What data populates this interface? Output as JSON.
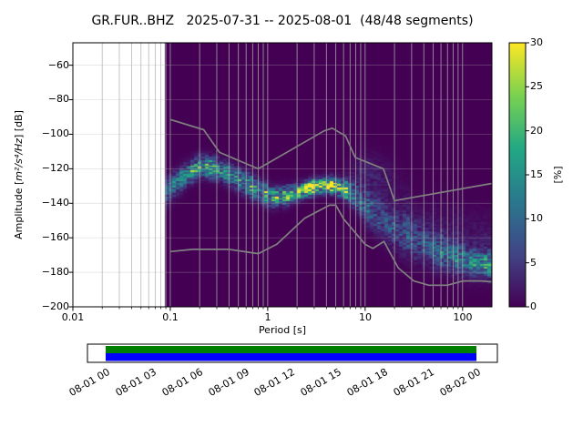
{
  "title": "GR.FUR..BHZ   2025-07-31 -- 2025-08-01  (48/48 segments)",
  "axes": {
    "xlabel": "Period [s]",
    "ylabel_prefix": "Amplitude [",
    "ylabel_math": "m²/s⁴/Hz",
    "ylabel_suffix": "] [dB]",
    "x_tick_labels": [
      "0.01",
      "0.1",
      "1",
      "10",
      "100"
    ],
    "y_tick_labels": [
      "−60",
      "−80",
      "−100",
      "−120",
      "−140",
      "−160",
      "−180",
      "−200"
    ]
  },
  "colorbar": {
    "label": "[%]",
    "tick_labels": [
      "0",
      "5",
      "10",
      "15",
      "20",
      "25",
      "30"
    ]
  },
  "timeline": {
    "tick_labels": [
      "08-01 00",
      "08-01 03",
      "08-01 06",
      "08-01 09",
      "08-01 12",
      "08-01 15",
      "08-01 18",
      "08-01 21",
      "08-02 00"
    ]
  },
  "colors": {
    "viridis_stops": [
      "#440154",
      "#414487",
      "#2a788e",
      "#22a884",
      "#7ad151",
      "#fde725"
    ],
    "histogram_background": "#440154",
    "noise_model": "#808080",
    "grid": "#b0b0b0",
    "timeline_used": "#008000",
    "timeline_coverage": "#0000ff"
  },
  "chart_data": {
    "type": "heatmap",
    "subtype": "ppsd-probability-density",
    "title": "GR.FUR..BHZ   2025-07-31 -- 2025-08-01  (48/48 segments)",
    "station": "GR.FUR..BHZ",
    "time_range": [
      "2025-07-31",
      "2025-08-01"
    ],
    "segments_used": 48,
    "segments_total": 48,
    "xlabel": "Period [s]",
    "ylabel": "Amplitude [m^2/s^4/Hz] [dB]",
    "xscale": "log",
    "xlim": [
      0.01,
      200
    ],
    "ylim": [
      -200,
      -47
    ],
    "grid": true,
    "colorbar_label": "[%]",
    "colorbar_range": [
      0,
      30
    ],
    "data_period_min_s": 0.088,
    "db_bin_width": 1,
    "period_bin_decades": 0.0376,
    "distribution_components_format": "[period_s, mode_db, sigma_db, peak_percent]",
    "distribution_components": {
      "main": [
        [
          0.088,
          -134,
          5.0,
          7
        ],
        [
          0.11,
          -129,
          4.5,
          10
        ],
        [
          0.15,
          -123,
          4.0,
          14
        ],
        [
          0.2,
          -118.5,
          3.8,
          16
        ],
        [
          0.28,
          -119.5,
          3.8,
          16
        ],
        [
          0.4,
          -123,
          4.0,
          14
        ],
        [
          0.6,
          -128.5,
          4.2,
          13
        ],
        [
          0.85,
          -133.5,
          4.0,
          14
        ],
        [
          1.1,
          -136.5,
          3.6,
          16
        ],
        [
          1.6,
          -135.5,
          3.2,
          19
        ],
        [
          2.3,
          -132.5,
          2.9,
          25
        ],
        [
          3.2,
          -130,
          2.7,
          30
        ],
        [
          4.5,
          -129.5,
          2.8,
          29
        ],
        [
          6.0,
          -131.5,
          3.2,
          22
        ],
        [
          8.0,
          -136,
          4.5,
          13
        ],
        [
          11,
          -143,
          6.5,
          8
        ],
        [
          16,
          -150,
          7.5,
          6.5
        ],
        [
          23,
          -156,
          8.0,
          6
        ],
        [
          34,
          -162,
          7.5,
          6.5
        ],
        [
          50,
          -167,
          6.5,
          8
        ],
        [
          75,
          -170.5,
          6.0,
          10
        ],
        [
          110,
          -173.5,
          5.5,
          12
        ],
        [
          160,
          -175.5,
          5.0,
          14
        ],
        [
          200,
          -176,
          5.0,
          14
        ]
      ],
      "mid_period_high_spread": [
        [
          6,
          -125,
          6,
          0.3
        ],
        [
          9,
          -122,
          7,
          2.5
        ],
        [
          13,
          -123,
          7,
          2.5
        ],
        [
          19,
          -129,
          8,
          1.2
        ],
        [
          28,
          -138,
          9,
          0.5
        ]
      ],
      "long_period_upper_scatter": [
        [
          25,
          -150,
          11,
          1.0
        ],
        [
          60,
          -156,
          11,
          1.5
        ],
        [
          120,
          -160,
          11,
          1.8
        ],
        [
          200,
          -162,
          11,
          1.8
        ]
      ]
    },
    "noise_models": {
      "nhnm_period_db": [
        [
          0.1,
          -91.5
        ],
        [
          0.22,
          -97.4
        ],
        [
          0.32,
          -110.5
        ],
        [
          0.8,
          -120.0
        ],
        [
          3.8,
          -98.0
        ],
        [
          4.6,
          -96.5
        ],
        [
          6.3,
          -101.0
        ],
        [
          7.9,
          -113.5
        ],
        [
          15.4,
          -120.0
        ],
        [
          20.0,
          -138.5
        ],
        [
          200.0,
          -128.5
        ]
      ],
      "nlnm_period_db": [
        [
          0.1,
          -168.0
        ],
        [
          0.17,
          -166.7
        ],
        [
          0.4,
          -166.7
        ],
        [
          0.8,
          -169.2
        ],
        [
          1.24,
          -163.7
        ],
        [
          2.4,
          -148.6
        ],
        [
          4.3,
          -141.1
        ],
        [
          5.0,
          -141.1
        ],
        [
          6.0,
          -149.0
        ],
        [
          10.0,
          -163.8
        ],
        [
          12.0,
          -166.2
        ],
        [
          15.6,
          -162.1
        ],
        [
          21.9,
          -177.5
        ],
        [
          31.6,
          -185.0
        ],
        [
          45.0,
          -187.5
        ],
        [
          70.0,
          -187.5
        ],
        [
          101.0,
          -185.0
        ],
        [
          154.0,
          -185.0
        ],
        [
          200.0,
          -185.5
        ]
      ]
    },
    "coverage_bar": {
      "axis_start_label": "08-01 00",
      "axis_end_label": "08-02 00",
      "used_fraction": 1.0
    }
  }
}
